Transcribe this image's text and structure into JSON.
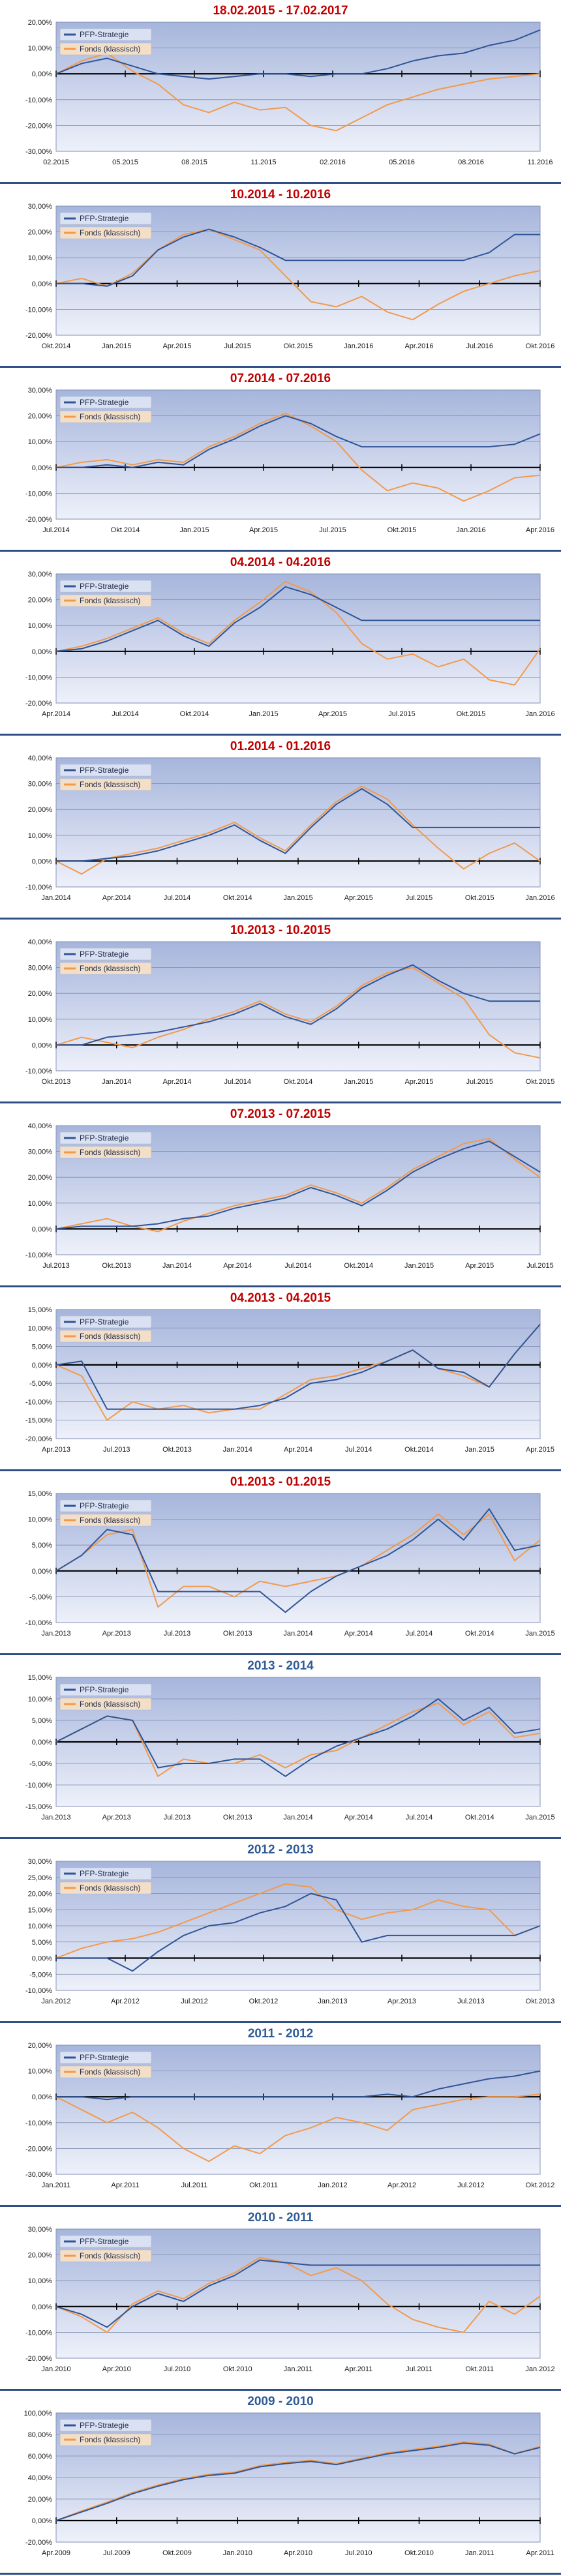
{
  "colors": {
    "strategy": "#2f5597",
    "fund": "#f29a4c",
    "title_red": "#c00000",
    "title_blue": "#2e5a96",
    "plot_top": "#a6b5dc",
    "plot_bottom": "#eef1fa",
    "panel_border": "#2f4f86"
  },
  "chart_data": [
    {
      "type": "line",
      "title": "18.02.2015 - 17.02.2017",
      "title_color": "red",
      "y_ticks": [
        "20,00%",
        "10,00%",
        "0,00%",
        "-10,00%",
        "-20,00%",
        "-30,00%"
      ],
      "ylim": [
        -30,
        20
      ],
      "x_ticks": [
        "02.2015",
        "05.2015",
        "08.2015",
        "11.2015",
        "02.2016",
        "05.2016",
        "08.2016",
        "11.2016"
      ],
      "series": [
        {
          "name": "PFP-Strategie",
          "values": [
            0,
            4,
            6,
            3,
            0,
            -1,
            -2,
            -1,
            0,
            0,
            -1,
            0,
            0,
            2,
            5,
            7,
            8,
            11,
            13,
            17
          ]
        },
        {
          "name": "Fonds (klassisch)",
          "values": [
            0,
            5,
            8,
            1,
            -4,
            -12,
            -15,
            -11,
            -14,
            -13,
            -20,
            -22,
            -17,
            -12,
            -9,
            -6,
            -4,
            -2,
            -1,
            0
          ]
        }
      ]
    },
    {
      "type": "line",
      "title": "10.2014 - 10.2016",
      "title_color": "red",
      "y_ticks": [
        "30,00%",
        "20,00%",
        "10,00%",
        "0,00%",
        "-10,00%",
        "-20,00%"
      ],
      "ylim": [
        -20,
        30
      ],
      "x_ticks": [
        "Okt.2014",
        "Jan.2015",
        "Apr.2015",
        "Jul.2015",
        "Okt.2015",
        "Jan.2016",
        "Apr.2016",
        "Jul.2016",
        "Okt.2016"
      ],
      "series": [
        {
          "name": "PFP-Strategie",
          "values": [
            0,
            0,
            -1,
            3,
            13,
            18,
            21,
            18,
            14,
            9,
            9,
            9,
            9,
            9,
            9,
            9,
            9,
            12,
            19,
            19
          ]
        },
        {
          "name": "Fonds (klassisch)",
          "values": [
            0,
            2,
            -1,
            4,
            13,
            19,
            21,
            17,
            13,
            3,
            -7,
            -9,
            -5,
            -11,
            -14,
            -8,
            -3,
            0,
            3,
            5
          ]
        }
      ]
    },
    {
      "type": "line",
      "title": "07.2014 - 07.2016",
      "title_color": "red",
      "y_ticks": [
        "30,00%",
        "20,00%",
        "10,00%",
        "0,00%",
        "-10,00%",
        "-20,00%"
      ],
      "ylim": [
        -20,
        30
      ],
      "x_ticks": [
        "Jul.2014",
        "Okt.2014",
        "Jan.2015",
        "Apr.2015",
        "Jul.2015",
        "Okt.2015",
        "Jan.2016",
        "Apr.2016"
      ],
      "series": [
        {
          "name": "PFP-Strategie",
          "values": [
            0,
            0,
            1,
            0,
            2,
            1,
            7,
            11,
            16,
            20,
            17,
            12,
            8,
            8,
            8,
            8,
            8,
            8,
            9,
            13
          ]
        },
        {
          "name": "Fonds (klassisch)",
          "values": [
            0,
            2,
            3,
            1,
            3,
            2,
            8,
            12,
            17,
            21,
            16,
            10,
            -1,
            -9,
            -6,
            -8,
            -13,
            -9,
            -4,
            -3
          ]
        }
      ]
    },
    {
      "type": "line",
      "title": "04.2014 - 04.2016",
      "title_color": "red",
      "y_ticks": [
        "30,00%",
        "20,00%",
        "10,00%",
        "0,00%",
        "-10,00%",
        "-20,00%"
      ],
      "ylim": [
        -20,
        30
      ],
      "x_ticks": [
        "Apr.2014",
        "Jul.2014",
        "Okt.2014",
        "Jan.2015",
        "Apr.2015",
        "Jul.2015",
        "Okt.2015",
        "Jan.2016"
      ],
      "series": [
        {
          "name": "PFP-Strategie",
          "values": [
            0,
            1,
            4,
            8,
            12,
            6,
            2,
            11,
            17,
            25,
            22,
            17,
            12,
            12,
            12,
            12,
            12,
            12,
            12,
            12
          ]
        },
        {
          "name": "Fonds (klassisch)",
          "values": [
            0,
            2,
            5,
            9,
            13,
            7,
            3,
            12,
            19,
            27,
            23,
            15,
            3,
            -3,
            -1,
            -6,
            -3,
            -11,
            -13,
            1
          ]
        }
      ]
    },
    {
      "type": "line",
      "title": "01.2014 - 01.2016",
      "title_color": "red",
      "y_ticks": [
        "40,00%",
        "30,00%",
        "20,00%",
        "10,00%",
        "0,00%",
        "-10,00%"
      ],
      "ylim": [
        -10,
        40
      ],
      "x_ticks": [
        "Jan.2014",
        "Apr.2014",
        "Jul.2014",
        "Okt.2014",
        "Jan.2015",
        "Apr.2015",
        "Jul.2015",
        "Okt.2015",
        "Jan.2016"
      ],
      "series": [
        {
          "name": "PFP-Strategie",
          "values": [
            0,
            0,
            1,
            2,
            4,
            7,
            10,
            14,
            8,
            3,
            13,
            22,
            28,
            22,
            13,
            13,
            13,
            13,
            13,
            13
          ]
        },
        {
          "name": "Fonds (klassisch)",
          "values": [
            0,
            -5,
            1,
            3,
            5,
            8,
            11,
            15,
            9,
            4,
            14,
            23,
            29,
            24,
            14,
            5,
            -3,
            3,
            7,
            0
          ]
        }
      ]
    },
    {
      "type": "line",
      "title": "10.2013 - 10.2015",
      "title_color": "red",
      "y_ticks": [
        "40,00%",
        "30,00%",
        "20,00%",
        "10,00%",
        "0,00%",
        "-10,00%"
      ],
      "ylim": [
        -10,
        40
      ],
      "x_ticks": [
        "Okt.2013",
        "Jan.2014",
        "Apr.2014",
        "Jul.2014",
        "Okt.2014",
        "Jan.2015",
        "Apr.2015",
        "Jul.2015",
        "Okt.2015"
      ],
      "series": [
        {
          "name": "PFP-Strategie",
          "values": [
            0,
            0,
            3,
            4,
            5,
            7,
            9,
            12,
            16,
            11,
            8,
            14,
            22,
            27,
            31,
            25,
            20,
            17,
            17,
            17
          ]
        },
        {
          "name": "Fonds (klassisch)",
          "values": [
            0,
            3,
            1,
            -1,
            3,
            6,
            10,
            13,
            17,
            12,
            9,
            15,
            23,
            28,
            30,
            24,
            18,
            4,
            -3,
            -5
          ]
        }
      ]
    },
    {
      "type": "line",
      "title": "07.2013 - 07.2015",
      "title_color": "red",
      "y_ticks": [
        "40,00%",
        "30,00%",
        "20,00%",
        "10,00%",
        "0,00%",
        "-10,00%"
      ],
      "ylim": [
        -10,
        40
      ],
      "x_ticks": [
        "Jul.2013",
        "Okt.2013",
        "Jan.2014",
        "Apr.2014",
        "Jul.2014",
        "Okt.2014",
        "Jan.2015",
        "Apr.2015",
        "Jul.2015"
      ],
      "series": [
        {
          "name": "PFP-Strategie",
          "values": [
            0,
            1,
            1,
            1,
            2,
            4,
            5,
            8,
            10,
            12,
            16,
            13,
            9,
            15,
            22,
            27,
            31,
            34,
            28,
            22
          ]
        },
        {
          "name": "Fonds (klassisch)",
          "values": [
            0,
            2,
            4,
            1,
            -1,
            3,
            6,
            9,
            11,
            13,
            17,
            14,
            10,
            16,
            23,
            28,
            33,
            35,
            27,
            20
          ]
        }
      ]
    },
    {
      "type": "line",
      "title": "04.2013 - 04.2015",
      "title_color": "red",
      "y_ticks": [
        "15,00%",
        "10,00%",
        "5,00%",
        "0,00%",
        "-5,00%",
        "-10,00%",
        "-15,00%",
        "-20,00%"
      ],
      "ylim": [
        -20,
        15
      ],
      "x_ticks": [
        "Apr.2013",
        "Jul.2013",
        "Okt.2013",
        "Jan.2014",
        "Apr.2014",
        "Jul.2014",
        "Okt.2014",
        "Jan.2015",
        "Apr.2015"
      ],
      "series": [
        {
          "name": "PFP-Strategie",
          "values": [
            0,
            1,
            -12,
            -12,
            -12,
            -12,
            -12,
            -12,
            -11,
            -9,
            -5,
            -4,
            -2,
            1,
            4,
            -1,
            -2,
            -6,
            3,
            11
          ]
        },
        {
          "name": "Fonds (klassisch)",
          "values": [
            0,
            -3,
            -15,
            -10,
            -12,
            -11,
            -13,
            -12,
            -12,
            -8,
            -4,
            -3,
            -1,
            1,
            4,
            -1,
            -3,
            -6,
            3,
            11
          ]
        }
      ]
    },
    {
      "type": "line",
      "title": "01.2013 - 01.2015",
      "title_color": "red",
      "y_ticks": [
        "15,00%",
        "10,00%",
        "5,00%",
        "0,00%",
        "-5,00%",
        "-10,00%"
      ],
      "ylim": [
        -10,
        15
      ],
      "x_ticks": [
        "Jan.2013",
        "Apr.2013",
        "Jul.2013",
        "Okt.2013",
        "Jan.2014",
        "Apr.2014",
        "Jul.2014",
        "Okt.2014",
        "Jan.2015"
      ],
      "series": [
        {
          "name": "PFP-Strategie",
          "values": [
            0,
            3,
            8,
            7,
            -4,
            -4,
            -4,
            -4,
            -4,
            -8,
            -4,
            -1,
            1,
            3,
            6,
            10,
            6,
            12,
            4,
            5
          ]
        },
        {
          "name": "Fonds (klassisch)",
          "values": [
            0,
            3,
            7,
            8,
            -7,
            -3,
            -3,
            -5,
            -2,
            -3,
            -2,
            -1,
            1,
            4,
            7,
            11,
            7,
            11,
            2,
            6
          ]
        }
      ]
    },
    {
      "type": "line",
      "title": "2013 - 2014",
      "title_color": "blue",
      "y_ticks": [
        "15,00%",
        "10,00%",
        "5,00%",
        "0,00%",
        "-5,00%",
        "-10,00%",
        "-15,00%"
      ],
      "ylim": [
        -15,
        15
      ],
      "x_ticks": [
        "Jan.2013",
        "Apr.2013",
        "Jul.2013",
        "Okt.2013",
        "Jan.2014",
        "Apr.2014",
        "Jul.2014",
        "Okt.2014",
        "Jan.2015"
      ],
      "series": [
        {
          "name": "PFP-Strategie",
          "values": [
            0,
            3,
            6,
            5,
            -6,
            -5,
            -5,
            -4,
            -4,
            -8,
            -4,
            -1,
            1,
            3,
            6,
            10,
            5,
            8,
            2,
            3
          ]
        },
        {
          "name": "Fonds (klassisch)",
          "values": [
            0,
            3,
            6,
            5,
            -8,
            -4,
            -5,
            -5,
            -3,
            -6,
            -3,
            -2,
            1,
            4,
            7,
            9,
            4,
            7,
            1,
            2
          ]
        }
      ]
    },
    {
      "type": "line",
      "title": "2012 - 2013",
      "title_color": "blue",
      "y_ticks": [
        "30,00%",
        "25,00%",
        "20,00%",
        "15,00%",
        "10,00%",
        "5,00%",
        "0,00%",
        "-5,00%",
        "-10,00%"
      ],
      "ylim": [
        -10,
        30
      ],
      "x_ticks": [
        "Jan.2012",
        "Apr.2012",
        "Jul.2012",
        "Okt.2012",
        "Jan.2013",
        "Apr.2013",
        "Jul.2013",
        "Okt.2013"
      ],
      "series": [
        {
          "name": "PFP-Strategie",
          "values": [
            0,
            0,
            0,
            -4,
            2,
            7,
            10,
            11,
            14,
            16,
            20,
            18,
            5,
            7,
            7,
            7,
            7,
            7,
            7,
            10
          ]
        },
        {
          "name": "Fonds (klassisch)",
          "values": [
            0,
            3,
            5,
            6,
            8,
            11,
            14,
            17,
            20,
            23,
            22,
            15,
            12,
            14,
            15,
            18,
            16,
            15,
            7,
            10
          ]
        }
      ]
    },
    {
      "type": "line",
      "title": "2011 - 2012",
      "title_color": "blue",
      "y_ticks": [
        "20,00%",
        "10,00%",
        "0,00%",
        "-10,00%",
        "-20,00%",
        "-30,00%"
      ],
      "ylim": [
        -30,
        20
      ],
      "x_ticks": [
        "Jan.2011",
        "Apr.2011",
        "Jul.2011",
        "Okt.2011",
        "Jan.2012",
        "Apr.2012",
        "Jul.2012",
        "Okt.2012"
      ],
      "series": [
        {
          "name": "PFP-Strategie",
          "values": [
            0,
            0,
            -1,
            0,
            0,
            0,
            0,
            0,
            0,
            0,
            0,
            0,
            0,
            1,
            0,
            3,
            5,
            7,
            8,
            10
          ]
        },
        {
          "name": "Fonds (klassisch)",
          "values": [
            0,
            -5,
            -10,
            -6,
            -12,
            -20,
            -25,
            -19,
            -22,
            -15,
            -12,
            -8,
            -10,
            -13,
            -5,
            -3,
            -1,
            0,
            0,
            1
          ]
        }
      ]
    },
    {
      "type": "line",
      "title": "2010 - 2011",
      "title_color": "blue",
      "y_ticks": [
        "30,00%",
        "20,00%",
        "10,00%",
        "0,00%",
        "-10,00%",
        "-20,00%"
      ],
      "ylim": [
        -20,
        30
      ],
      "x_ticks": [
        "Jan.2010",
        "Apr.2010",
        "Jul.2010",
        "Okt.2010",
        "Jan.2011",
        "Apr.2011",
        "Jul.2011",
        "Okt.2011",
        "Jan.2012"
      ],
      "series": [
        {
          "name": "PFP-Strategie",
          "values": [
            0,
            -3,
            -8,
            0,
            5,
            2,
            8,
            12,
            18,
            17,
            16,
            16,
            16,
            16,
            16,
            16,
            16,
            16,
            16,
            16
          ]
        },
        {
          "name": "Fonds (klassisch)",
          "values": [
            0,
            -4,
            -10,
            1,
            6,
            3,
            9,
            13,
            19,
            17,
            12,
            15,
            10,
            1,
            -5,
            -8,
            -10,
            2,
            -3,
            4
          ]
        }
      ]
    },
    {
      "type": "line",
      "title": "2009 - 2010",
      "title_color": "blue",
      "y_ticks": [
        "100,00%",
        "80,00%",
        "60,00%",
        "40,00%",
        "20,00%",
        "0,00%",
        "-20,00%"
      ],
      "ylim": [
        -20,
        100
      ],
      "x_ticks": [
        "Apr.2009",
        "Jul.2009",
        "Okt.2009",
        "Jan.2010",
        "Apr.2010",
        "Jul.2010",
        "Okt.2010",
        "Jan.2011",
        "Apr.2011"
      ],
      "series": [
        {
          "name": "PFP-Strategie",
          "values": [
            0,
            8,
            16,
            25,
            32,
            38,
            42,
            44,
            50,
            53,
            55,
            52,
            57,
            62,
            65,
            68,
            72,
            70,
            62,
            68
          ]
        },
        {
          "name": "Fonds (klassisch)",
          "values": [
            0,
            9,
            17,
            26,
            33,
            39,
            43,
            45,
            51,
            54,
            56,
            53,
            58,
            63,
            66,
            69,
            73,
            71,
            62,
            69
          ]
        }
      ]
    }
  ]
}
